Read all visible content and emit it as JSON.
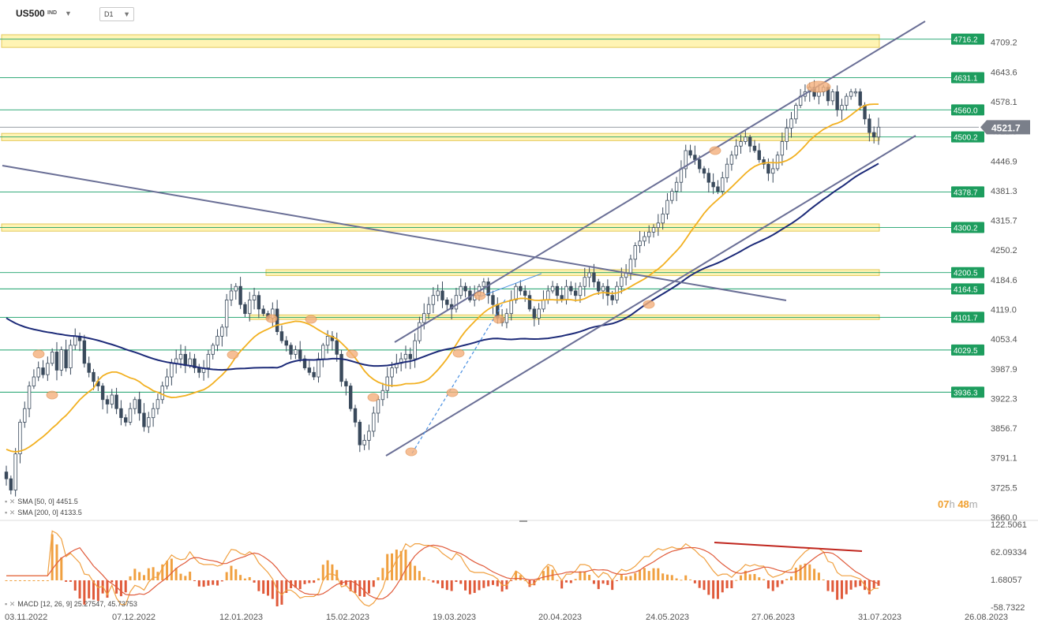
{
  "symbol": "US500",
  "exchange": "IND",
  "timeframe": "D1",
  "countdown": {
    "hours": "07",
    "h_unit": "h",
    "minutes": "48",
    "m_unit": "m"
  },
  "indicators": {
    "sma50": "SMA [50, 0] 4451.5",
    "sma200": "SMA [200, 0] 4133.5",
    "macd_label": "MACD [12, 26, 9]",
    "macd_values": "25.27547,  45.73753"
  },
  "colors": {
    "bull": "#ffffff",
    "bear": "#3a4a5c",
    "sma50": "#f2b020",
    "sma200": "#1c2a78",
    "hline": "#1aa06a",
    "zone_fill": "#fff3a8",
    "zone_border": "#e0c040",
    "channel": "#6a6f96",
    "macd_fast": "#f0a040",
    "macd_slow": "#e05a3a",
    "hist_pos": "#f0a040",
    "hist_neg": "#e05a3a",
    "divergence": "#c0261e",
    "marker": "#f4b07c",
    "current_price_bg": "#7a7f8a"
  },
  "chart_data": {
    "type": "candlestick",
    "price_axis_ticks": [
      "4709.2",
      "4643.6",
      "4578.1",
      "4512.5",
      "4446.9",
      "4381.3",
      "4315.7",
      "4250.2",
      "4184.6",
      "4119.0",
      "4053.4",
      "3987.9",
      "3922.3",
      "3856.7",
      "3791.1",
      "3725.5",
      "3660.0"
    ],
    "ylim": [
      3660.0,
      4740.0
    ],
    "date_ticks": [
      "03.11.2022",
      "07.12.2022",
      "12.01.2023",
      "15.02.2023",
      "19.03.2023",
      "20.04.2023",
      "24.05.2023",
      "27.06.2023",
      "31.07.2023",
      "26.08.2023"
    ],
    "current_price": "4521.7",
    "levels": [
      "4716.2",
      "4631.1",
      "4560.0",
      "4500.2",
      "4378.7",
      "4300.2",
      "4200.5",
      "4164.5",
      "4101.7",
      "4029.5",
      "3936.3"
    ],
    "zones": [
      {
        "low": 4698,
        "high": 4726
      },
      {
        "low": 4492,
        "high": 4508
      },
      {
        "low": 4292,
        "high": 4308
      },
      {
        "low": 4194,
        "high": 4207
      },
      {
        "low": 4097,
        "high": 4107
      }
    ],
    "closes": [
      3745,
      3720,
      3800,
      3870,
      3900,
      3950,
      3970,
      3990,
      3975,
      4000,
      4025,
      3985,
      4030,
      3990,
      4040,
      4060,
      4050,
      4000,
      3980,
      3960,
      3950,
      3920,
      3910,
      3930,
      3900,
      3880,
      3870,
      3900,
      3920,
      3890,
      3860,
      3880,
      3900,
      3920,
      3950,
      3970,
      4000,
      4010,
      4020,
      3995,
      4010,
      3990,
      3980,
      3990,
      4020,
      4040,
      4060,
      4080,
      4140,
      4160,
      4170,
      4130,
      4110,
      4140,
      4150,
      4120,
      4110,
      4100,
      4120,
      4070,
      4050,
      4040,
      4020,
      4030,
      4010,
      3990,
      3980,
      3970,
      4010,
      4040,
      4060,
      4050,
      4020,
      3960,
      3950,
      3900,
      3870,
      3820,
      3830,
      3850,
      3890,
      3920,
      3940,
      3970,
      3990,
      4000,
      4010,
      4020,
      4010,
      4050,
      4090,
      4110,
      4130,
      4150,
      4160,
      4140,
      4130,
      4120,
      4150,
      4170,
      4160,
      4140,
      4150,
      4170,
      4180,
      4150,
      4130,
      4100,
      4090,
      4110,
      4140,
      4170,
      4160,
      4150,
      4120,
      4100,
      4120,
      4140,
      4160,
      4170,
      4150,
      4140,
      4170,
      4160,
      4150,
      4170,
      4190,
      4200,
      4180,
      4160,
      4170,
      4150,
      4140,
      4170,
      4190,
      4200,
      4230,
      4260,
      4270,
      4280,
      4290,
      4300,
      4310,
      4330,
      4360,
      4380,
      4400,
      4430,
      4470,
      4460,
      4450,
      4430,
      4420,
      4400,
      4390,
      4380,
      4410,
      4440,
      4460,
      4480,
      4490,
      4500,
      4480,
      4470,
      4450,
      4440,
      4420,
      4430,
      4460,
      4490,
      4520,
      4540,
      4570,
      4590,
      4600,
      4610,
      4590,
      4600,
      4610,
      4580,
      4600,
      4560,
      4570,
      4590,
      4600,
      4600,
      4570,
      4540,
      4510,
      4500,
      4521.7
    ],
    "sma50_start": 3810,
    "sma200_start": 4100,
    "macd_axis_ticks": [
      "122.5061",
      "62.09334",
      "1.68057",
      "-58.7322"
    ],
    "macd_ylim": [
      -58.7322,
      122.5061
    ]
  }
}
